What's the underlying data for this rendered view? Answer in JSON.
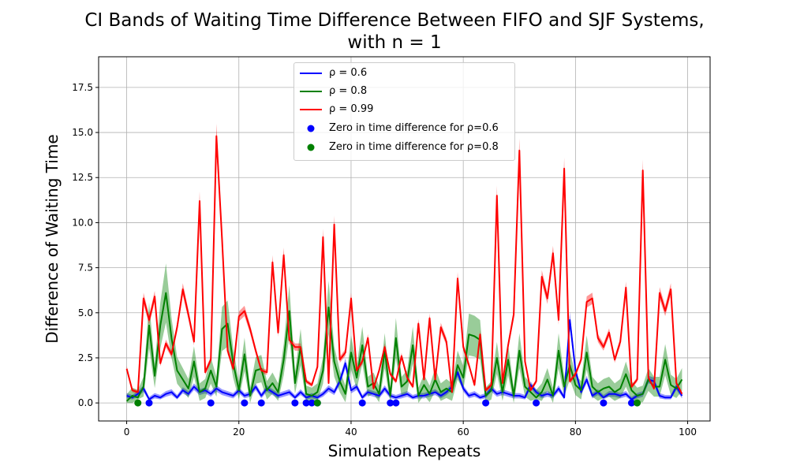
{
  "chart_data": {
    "type": "line",
    "title_line1": "CI Bands of Waiting Time Difference Between FIFO and SJF Systems,",
    "title_line2": "with n = 1",
    "xlabel": "Simulation Repeats",
    "ylabel": "Difference of Waiting Time",
    "xlim": [
      -5,
      104
    ],
    "ylim": [
      -1,
      19.2
    ],
    "xticks": [
      0,
      20,
      40,
      60,
      80,
      100
    ],
    "yticks": [
      0.0,
      2.5,
      5.0,
      7.5,
      10.0,
      12.5,
      15.0,
      17.5
    ],
    "xtick_labels": [
      "0",
      "20",
      "40",
      "60",
      "80",
      "100"
    ],
    "ytick_labels": [
      "0.0",
      "2.5",
      "5.0",
      "7.5",
      "10.0",
      "12.5",
      "15.0",
      "17.5"
    ],
    "grid": true,
    "legend_position": "upper-center",
    "x": [
      0,
      1,
      2,
      3,
      4,
      5,
      6,
      7,
      8,
      9,
      10,
      11,
      12,
      13,
      14,
      15,
      16,
      17,
      18,
      19,
      20,
      21,
      22,
      23,
      24,
      25,
      26,
      27,
      28,
      29,
      30,
      31,
      32,
      33,
      34,
      35,
      36,
      37,
      38,
      39,
      40,
      41,
      42,
      43,
      44,
      45,
      46,
      47,
      48,
      49,
      50,
      51,
      52,
      53,
      54,
      55,
      56,
      57,
      58,
      59,
      60,
      61,
      62,
      63,
      64,
      65,
      66,
      67,
      68,
      69,
      70,
      71,
      72,
      73,
      74,
      75,
      76,
      77,
      78,
      79,
      80,
      81,
      82,
      83,
      84,
      85,
      86,
      87,
      88,
      89,
      90,
      91,
      92,
      93,
      94,
      95,
      96,
      97,
      98,
      99
    ],
    "series": [
      {
        "name": "ρ = 0.6",
        "color": "#0000ff",
        "values": [
          0.4,
          0.3,
          0.5,
          0.8,
          0.2,
          0.4,
          0.3,
          0.5,
          0.6,
          0.3,
          0.7,
          0.5,
          0.9,
          0.6,
          0.7,
          0.5,
          0.8,
          0.6,
          0.5,
          0.4,
          0.7,
          0.4,
          0.5,
          0.9,
          0.4,
          0.8,
          0.6,
          0.4,
          0.5,
          0.6,
          0.3,
          0.6,
          0.3,
          0.4,
          0.3,
          0.5,
          0.8,
          0.6,
          1.2,
          2.2,
          0.7,
          0.9,
          0.3,
          0.6,
          0.5,
          0.4,
          0.8,
          0.4,
          0.3,
          0.4,
          0.5,
          0.3,
          0.4,
          0.4,
          0.5,
          0.6,
          0.4,
          0.6,
          0.9,
          1.7,
          0.8,
          0.4,
          0.5,
          0.3,
          0.4,
          0.8,
          0.5,
          0.6,
          0.5,
          0.4,
          0.4,
          0.3,
          1.0,
          0.6,
          0.4,
          0.5,
          0.4,
          0.8,
          0.3,
          4.6,
          1.8,
          0.6,
          1.3,
          0.4,
          0.6,
          0.3,
          0.5,
          0.5,
          0.4,
          0.5,
          0.2,
          0.4,
          0.5,
          1.3,
          1.2,
          0.4,
          0.3,
          0.3,
          0.9,
          0.4
        ],
        "ci_halfwidth": 0.2
      },
      {
        "name": "ρ = 0.8",
        "color": "#008000",
        "values": [
          0.1,
          0.4,
          0.3,
          0.9,
          4.3,
          1.5,
          4.3,
          6.1,
          3.6,
          1.8,
          1.3,
          0.8,
          2.3,
          0.6,
          0.8,
          1.8,
          0.9,
          4.1,
          4.4,
          2.2,
          0.7,
          2.7,
          0.4,
          1.8,
          1.9,
          0.7,
          1.1,
          0.6,
          2.4,
          5.1,
          1.1,
          3.1,
          0.5,
          0.4,
          0.6,
          1.8,
          5.3,
          2.3,
          1.2,
          0.5,
          2.8,
          1.4,
          3.2,
          0.9,
          1.1,
          0.5,
          2.9,
          0.4,
          3.6,
          0.9,
          1.2,
          3.2,
          0.4,
          1.0,
          0.5,
          1.3,
          0.6,
          0.8,
          0.6,
          2.1,
          1.4,
          3.8,
          3.7,
          3.5,
          0.4,
          0.7,
          2.5,
          0.6,
          2.4,
          0.4,
          2.9,
          0.9,
          0.6,
          0.3,
          0.6,
          1.3,
          0.4,
          2.9,
          0.9,
          2.1,
          1.0,
          0.7,
          2.8,
          0.9,
          0.6,
          0.8,
          0.9,
          0.6,
          0.8,
          1.6,
          0.7,
          0.4,
          0.5,
          1.3,
          0.9,
          0.9,
          2.4,
          1.0,
          0.8,
          1.3
        ],
        "ci_halfwidth": 0.6
      },
      {
        "name": "ρ = 0.99",
        "color": "#ff0000",
        "values": [
          1.9,
          0.7,
          0.6,
          5.8,
          4.6,
          5.9,
          2.2,
          3.3,
          2.7,
          4.2,
          6.3,
          4.9,
          3.4,
          11.2,
          1.7,
          2.4,
          14.8,
          9.1,
          2.9,
          1.9,
          4.8,
          5.1,
          4.1,
          2.9,
          1.8,
          1.7,
          7.8,
          3.9,
          8.2,
          3.5,
          3.1,
          3.1,
          1.2,
          1.0,
          2.0,
          9.2,
          1.1,
          9.9,
          2.4,
          2.8,
          5.8,
          1.8,
          2.3,
          3.6,
          0.8,
          1.8,
          3.1,
          1.6,
          1.2,
          2.6,
          1.4,
          0.9,
          4.4,
          1.3,
          4.7,
          1.3,
          4.2,
          3.4,
          0.6,
          6.9,
          3.1,
          2.1,
          1.0,
          3.8,
          0.7,
          1.0,
          11.5,
          1.1,
          3.2,
          4.9,
          14.0,
          2.3,
          0.7,
          1.2,
          7.0,
          5.8,
          8.3,
          4.6,
          13.0,
          1.2,
          1.6,
          2.4,
          5.6,
          5.8,
          3.6,
          3.1,
          3.9,
          2.4,
          3.4,
          6.4,
          0.9,
          1.3,
          12.9,
          1.4,
          0.8,
          6.1,
          5.1,
          6.3,
          1.1,
          0.5
        ],
        "ci_halfwidth": 0.12
      }
    ],
    "zero_markers": [
      {
        "name": "Zero in time difference for ρ=0.6",
        "color": "#0000ff",
        "x": [
          4,
          15,
          21,
          24,
          30,
          32,
          33,
          34,
          42,
          47,
          48,
          64,
          73,
          85,
          90
        ]
      },
      {
        "name": "Zero in time difference for ρ=0.8",
        "color": "#008000",
        "x": [
          2,
          34,
          91
        ]
      }
    ]
  }
}
